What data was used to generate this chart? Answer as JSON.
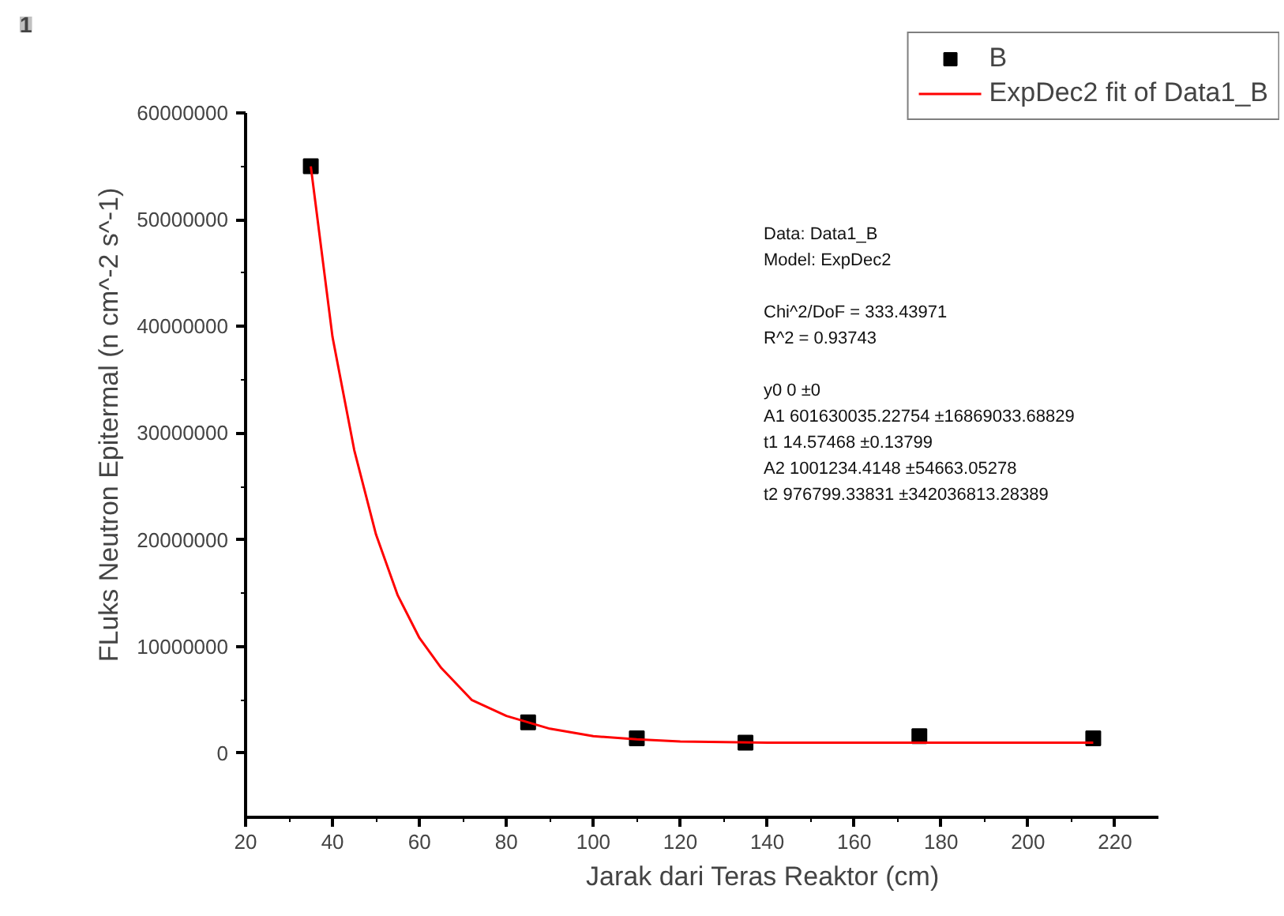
{
  "chart_data": {
    "type": "scatter",
    "xlabel": "Jarak dari Teras Reaktor (cm)",
    "ylabel": "FLuks Neutron Epitermal (n cm^-2 s^-1)",
    "xlim": [
      20,
      230
    ],
    "ylim": [
      -6000000,
      60000000
    ],
    "xticks": [
      20,
      40,
      60,
      80,
      100,
      120,
      140,
      160,
      180,
      200,
      220
    ],
    "yticks": [
      0,
      10000000,
      20000000,
      30000000,
      40000000,
      50000000,
      60000000
    ],
    "grid": false,
    "legend": "top right",
    "series": [
      {
        "name": "B",
        "marker": "square",
        "color": "#000000",
        "x": [
          35,
          85,
          110,
          135,
          175,
          215
        ],
        "values": [
          55000000,
          2900000,
          1400000,
          1000000,
          1600000,
          1400000
        ]
      },
      {
        "name": "ExpDec2 fit of Data1_B",
        "type": "line",
        "marker": "none",
        "line_style": "solid",
        "color": "#ff0000",
        "x": [
          35,
          40,
          45,
          50,
          55,
          60,
          65,
          72,
          80,
          90,
          100,
          110,
          120,
          140,
          160,
          180,
          200,
          215
        ],
        "values": [
          55000000,
          39000000,
          28400000,
          20500000,
          14800000,
          10800000,
          8000000,
          5000000,
          3500000,
          2300000,
          1600000,
          1300000,
          1100000,
          1000000,
          1000000,
          1000000,
          1000000,
          1000000
        ]
      }
    ],
    "annotations": [
      "1",
      "Data: Data1_B",
      "Model: ExpDec2",
      "Chi^2/DoF = 333.43971",
      "R^2 = 0.93743",
      "y0 0 ±0",
      "A1 601630035.22754 ±16869033.68829",
      "t1 14.57468 ±0.13799",
      "A2 1001234.4148 ±54663.05278",
      "t2 976799.33831 ±342036813.28389"
    ]
  }
}
